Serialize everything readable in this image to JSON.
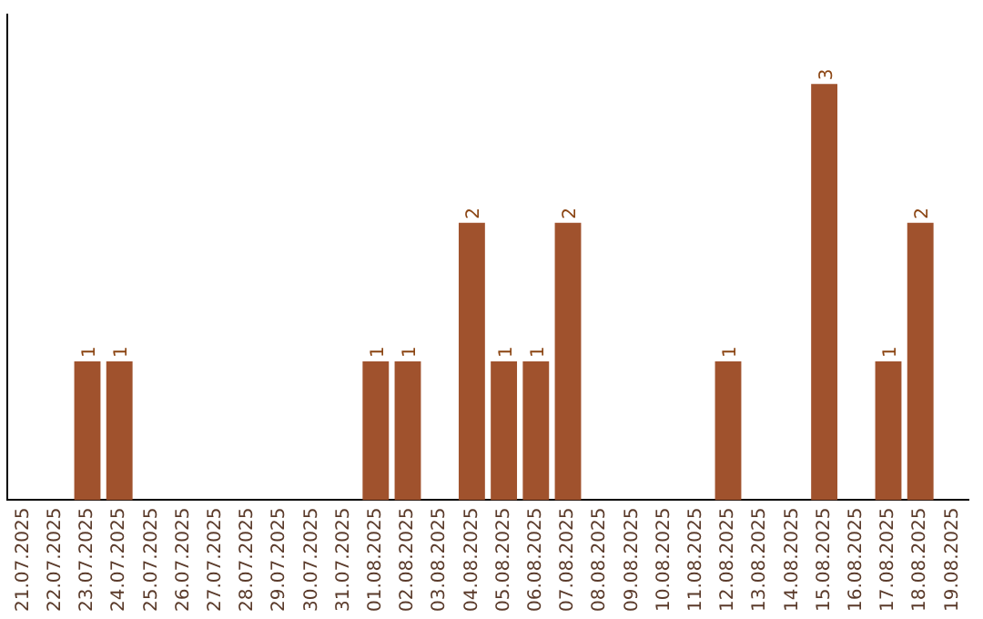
{
  "chart_data": {
    "type": "bar",
    "categories": [
      "21.07.2025",
      "22.07.2025",
      "23.07.2025",
      "24.07.2025",
      "25.07.2025",
      "26.07.2025",
      "27.07.2025",
      "28.07.2025",
      "29.07.2025",
      "30.07.2025",
      "31.07.2025",
      "01.08.2025",
      "02.08.2025",
      "03.08.2025",
      "04.08.2025",
      "05.08.2025",
      "06.08.2025",
      "07.08.2025",
      "08.08.2025",
      "09.08.2025",
      "10.08.2025",
      "11.08.2025",
      "12.08.2025",
      "13.08.2025",
      "14.08.2025",
      "15.08.2025",
      "16.08.2025",
      "17.08.2025",
      "18.08.2025",
      "19.08.2025"
    ],
    "values": [
      0,
      0,
      1,
      1,
      0,
      0,
      0,
      0,
      0,
      0,
      0,
      1,
      1,
      0,
      2,
      1,
      1,
      2,
      0,
      0,
      0,
      0,
      1,
      0,
      0,
      3,
      0,
      1,
      2,
      0
    ],
    "value_labels": [
      null,
      null,
      "1",
      "1",
      null,
      null,
      null,
      null,
      null,
      null,
      null,
      "1",
      "1",
      null,
      "2",
      "1",
      "1",
      "2",
      null,
      null,
      null,
      null,
      "1",
      null,
      null,
      "3",
      null,
      "1",
      "2",
      null
    ],
    "color": "#a0522d",
    "grid": false,
    "legend": false,
    "tick_labels": "x"
  }
}
